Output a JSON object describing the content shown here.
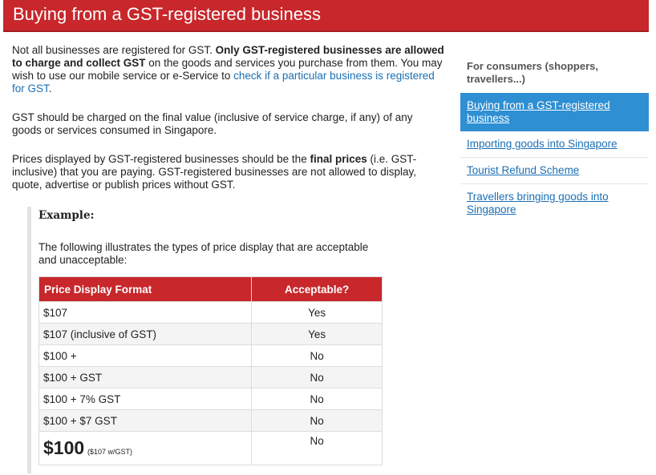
{
  "page_title": "Buying from a GST-registered business",
  "intro": {
    "p1_a": "Not all businesses are registered for GST. ",
    "p1_bold": "Only GST-registered businesses are allowed to charge and collect GST",
    "p1_b": " on the goods and services you purchase from them. You may wish to use our mobile service or e-Service to ",
    "p1_link": "check if a particular business is registered for GST",
    "p1_c": ".",
    "p2": "GST should be charged on the final value (inclusive of service charge, if any) of any goods or services consumed in Singapore.",
    "p3_a": "Prices displayed by GST-registered businesses should be the ",
    "p3_bold": "final prices",
    "p3_b": " (i.e. GST-inclusive) that you are paying. GST-registered businesses are not allowed to display, quote, advertise or publish prices without GST."
  },
  "example": {
    "heading": "Example:",
    "text": "The following illustrates the types of price display that are acceptable and unacceptable:",
    "table": {
      "headers": [
        "Price Display Format",
        "Acceptable?"
      ],
      "rows": [
        [
          "$107",
          "Yes"
        ],
        [
          "$107 (inclusive of GST)",
          "Yes"
        ],
        [
          "$100 +",
          "No"
        ],
        [
          "$100 + GST",
          "No"
        ],
        [
          "$100 + 7% GST",
          "No"
        ],
        [
          "$100 + $7 GST",
          "No"
        ]
      ],
      "last_row": {
        "price": "$100",
        "note": "($107 w/GST)",
        "acceptable": "No"
      }
    }
  },
  "sidebar": {
    "heading": "For consumers (shoppers, travellers...)",
    "items": [
      {
        "label": "Buying from a GST-registered business"
      },
      {
        "label": "Importing goods into Singapore"
      },
      {
        "label": "Tourist Refund Scheme"
      },
      {
        "label": "Travellers bringing goods into Singapore"
      }
    ]
  },
  "colors": {
    "brand_red": "#c8272b",
    "link_blue": "#1a6fb5",
    "active_blue": "#2e8fd2"
  }
}
